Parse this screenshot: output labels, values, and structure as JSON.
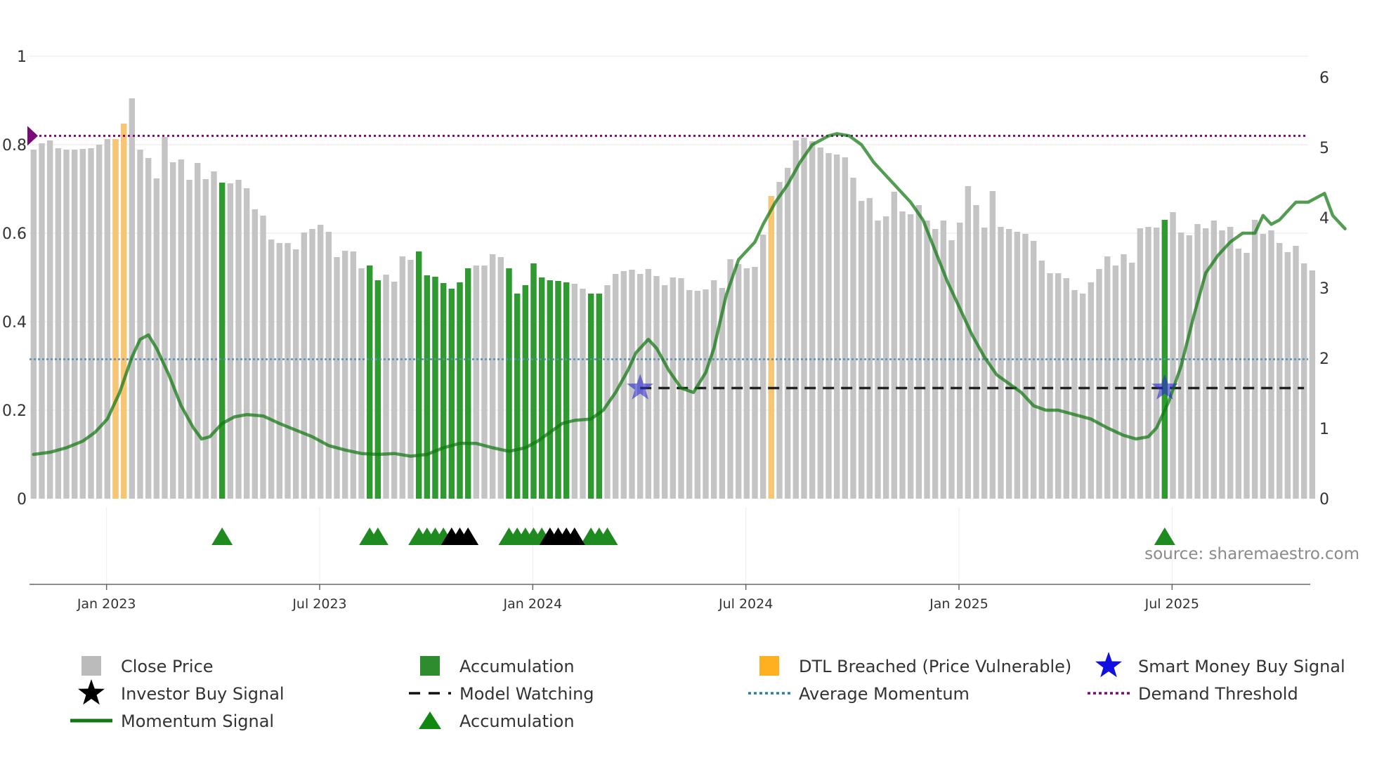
{
  "chart_data": {
    "type": "bar",
    "title": "",
    "source": "source: sharemaestro.com",
    "left_axis": {
      "ticks": [
        "0",
        "0.2",
        "0.4",
        "0.6",
        "0.8",
        "1"
      ],
      "tick_values": [
        0,
        0.2,
        0.4,
        0.6,
        0.8,
        1
      ],
      "range": [
        0,
        1
      ]
    },
    "right_axis": {
      "ticks": [
        "0",
        "1",
        "2",
        "3",
        "4",
        "5",
        "6"
      ],
      "tick_values": [
        0,
        1,
        2,
        3,
        4,
        5,
        6
      ],
      "range": [
        0,
        6
      ]
    },
    "x_axis": {
      "ticks": [
        "Jan 2023",
        "Jul 2023",
        "Jan 2024",
        "Jul 2024",
        "Jan 2025",
        "Jul 2025"
      ],
      "tick_weeks": [
        9.9,
        35.9,
        61.9,
        87.9,
        113.9,
        139.9
      ],
      "week_range": [
        0.5,
        156.5
      ]
    },
    "close_price": [
      4.97,
      5.06,
      5.1,
      4.99,
      4.97,
      4.97,
      4.98,
      4.99,
      5.04,
      5.12,
      5.12,
      5.34,
      5.7,
      4.97,
      4.85,
      4.56,
      5.15,
      4.79,
      4.83,
      4.54,
      4.78,
      4.55,
      4.66,
      4.5,
      4.49,
      4.54,
      4.42,
      4.12,
      4.03,
      3.69,
      3.64,
      3.64,
      3.55,
      3.79,
      3.84,
      3.9,
      3.8,
      3.44,
      3.53,
      3.52,
      3.28,
      3.32,
      3.11,
      3.19,
      3.09,
      3.45,
      3.4,
      3.52,
      3.18,
      3.16,
      3.07,
      2.99,
      3.08,
      3.28,
      3.32,
      3.32,
      3.48,
      3.44,
      3.28,
      2.92,
      3.04,
      3.35,
      3.15,
      3.11,
      3.1,
      3.08,
      3.06,
      2.99,
      2.92,
      2.92,
      3.04,
      3.2,
      3.24,
      3.26,
      3.2,
      3.27,
      3.17,
      3.04,
      3.15,
      3.14,
      2.97,
      2.96,
      2.98,
      3.11,
      3.0,
      3.41,
      3.34,
      3.28,
      3.3,
      3.76,
      4.31,
      4.51,
      4.71,
      5.1,
      5.14,
      5.09,
      5.0,
      4.92,
      4.9,
      4.86,
      4.57,
      4.24,
      4.28,
      3.96,
      4.02,
      4.37,
      4.09,
      4.05,
      4.18,
      3.96,
      3.84,
      3.96,
      3.68,
      3.93,
      4.45,
      4.18,
      3.86,
      4.38,
      3.87,
      3.84,
      3.8,
      3.77,
      3.67,
      3.39,
      3.21,
      3.21,
      3.14,
      2.97,
      2.92,
      3.08,
      3.27,
      3.45,
      3.32,
      3.48,
      3.36,
      3.85,
      3.87,
      3.86,
      3.97,
      4.08,
      3.79,
      3.75,
      3.91,
      3.85,
      3.96,
      3.82,
      3.87,
      3.56,
      3.5,
      3.97,
      3.77,
      3.82,
      3.64,
      3.51,
      3.6,
      3.35,
      3.25
    ],
    "accumulation_weeks": [
      24,
      42,
      43,
      48,
      49,
      50,
      51,
      52,
      53,
      54,
      59,
      60,
      61,
      62,
      63,
      64,
      65,
      66,
      69,
      70,
      139
    ],
    "dtl_breached_weeks": [
      11,
      12,
      91
    ],
    "accumulation_markers": [
      24,
      42,
      43,
      48,
      49,
      50,
      51,
      59,
      60,
      61,
      62,
      63,
      69,
      70,
      71,
      139
    ],
    "investor_buy_markers": [
      52,
      53,
      54,
      64,
      65,
      66,
      67
    ],
    "smart_money_markers": [
      75,
      139
    ],
    "model_watching": {
      "start_week": 75,
      "end_week": 156,
      "value": 0.25
    },
    "average_momentum": 0.315,
    "demand_threshold": 0.82,
    "momentum_signal": [
      [
        1,
        0.1
      ],
      [
        3,
        0.105
      ],
      [
        5,
        0.115
      ],
      [
        7,
        0.13
      ],
      [
        8.5,
        0.15
      ],
      [
        10,
        0.18
      ],
      [
        11.5,
        0.24
      ],
      [
        13,
        0.32
      ],
      [
        14,
        0.36
      ],
      [
        15,
        0.37
      ],
      [
        16,
        0.34
      ],
      [
        17.5,
        0.28
      ],
      [
        19,
        0.21
      ],
      [
        20.5,
        0.16
      ],
      [
        21.5,
        0.135
      ],
      [
        22.5,
        0.14
      ],
      [
        24,
        0.17
      ],
      [
        25.5,
        0.185
      ],
      [
        27,
        0.19
      ],
      [
        29,
        0.187
      ],
      [
        31,
        0.17
      ],
      [
        33,
        0.155
      ],
      [
        35,
        0.14
      ],
      [
        37,
        0.12
      ],
      [
        39,
        0.11
      ],
      [
        41,
        0.102
      ],
      [
        43,
        0.1
      ],
      [
        45,
        0.102
      ],
      [
        47,
        0.096
      ],
      [
        49,
        0.1
      ],
      [
        51,
        0.115
      ],
      [
        53,
        0.125
      ],
      [
        55,
        0.125
      ],
      [
        57,
        0.115
      ],
      [
        59,
        0.107
      ],
      [
        61,
        0.115
      ],
      [
        62.5,
        0.13
      ],
      [
        64,
        0.15
      ],
      [
        65.5,
        0.17
      ],
      [
        67,
        0.177
      ],
      [
        69,
        0.18
      ],
      [
        70.5,
        0.2
      ],
      [
        72,
        0.24
      ],
      [
        73.5,
        0.29
      ],
      [
        74.5,
        0.33
      ],
      [
        76,
        0.36
      ],
      [
        77,
        0.34
      ],
      [
        78.5,
        0.29
      ],
      [
        80,
        0.25
      ],
      [
        81.5,
        0.24
      ],
      [
        83,
        0.285
      ],
      [
        84,
        0.34
      ],
      [
        85.5,
        0.46
      ],
      [
        87,
        0.54
      ],
      [
        89,
        0.58
      ],
      [
        90,
        0.62
      ],
      [
        91.5,
        0.67
      ],
      [
        93,
        0.71
      ],
      [
        94.5,
        0.76
      ],
      [
        96,
        0.8
      ],
      [
        98,
        0.82
      ],
      [
        99,
        0.825
      ],
      [
        100.5,
        0.82
      ],
      [
        102,
        0.8
      ],
      [
        103.5,
        0.76
      ],
      [
        105,
        0.73
      ],
      [
        106.5,
        0.7
      ],
      [
        108,
        0.67
      ],
      [
        109.5,
        0.63
      ],
      [
        111,
        0.56
      ],
      [
        112.5,
        0.49
      ],
      [
        114,
        0.43
      ],
      [
        115.5,
        0.37
      ],
      [
        117,
        0.32
      ],
      [
        118.5,
        0.28
      ],
      [
        120,
        0.26
      ],
      [
        121.5,
        0.24
      ],
      [
        123,
        0.21
      ],
      [
        124.5,
        0.2
      ],
      [
        126,
        0.2
      ],
      [
        128,
        0.19
      ],
      [
        130,
        0.18
      ],
      [
        132,
        0.16
      ],
      [
        134,
        0.143
      ],
      [
        135.5,
        0.135
      ],
      [
        137,
        0.14
      ],
      [
        138,
        0.16
      ],
      [
        139.5,
        0.22
      ],
      [
        141,
        0.3
      ],
      [
        142.5,
        0.41
      ],
      [
        144,
        0.51
      ],
      [
        145.5,
        0.55
      ],
      [
        147,
        0.58
      ],
      [
        148.5,
        0.6
      ],
      [
        150,
        0.6
      ],
      [
        151,
        0.64
      ],
      [
        152,
        0.62
      ],
      [
        153,
        0.63
      ],
      [
        154,
        0.65
      ],
      [
        155,
        0.67
      ],
      [
        156.5,
        0.67
      ],
      [
        157.5,
        0.68
      ],
      [
        158.5,
        0.69
      ],
      [
        159.5,
        0.64
      ],
      [
        161,
        0.61
      ]
    ]
  },
  "legend": [
    {
      "label": "Close Price",
      "color": "#bbbbbb",
      "icon": "square"
    },
    {
      "label": "Accumulation",
      "color": "#2e8b2e",
      "icon": "square"
    },
    {
      "label": "DTL Breached (Price Vulnerable)",
      "color": "#ffb020",
      "icon": "square"
    },
    {
      "label": "Smart Money Buy Signal",
      "color": "#1010e0",
      "icon": "star"
    },
    {
      "label": "Investor Buy Signal",
      "color": "#000000",
      "icon": "star"
    },
    {
      "label": "Model Watching",
      "color": "#111111",
      "icon": "dash"
    },
    {
      "label": "Average Momentum",
      "color": "#2a7fb0",
      "icon": "dotted"
    },
    {
      "label": "Demand Threshold",
      "color": "#7a0a7a",
      "icon": "dotted"
    },
    {
      "label": "Momentum Signal",
      "color": "#117711",
      "icon": "line"
    },
    {
      "label": "Accumulation",
      "color": "#118811",
      "icon": "triangle"
    }
  ]
}
